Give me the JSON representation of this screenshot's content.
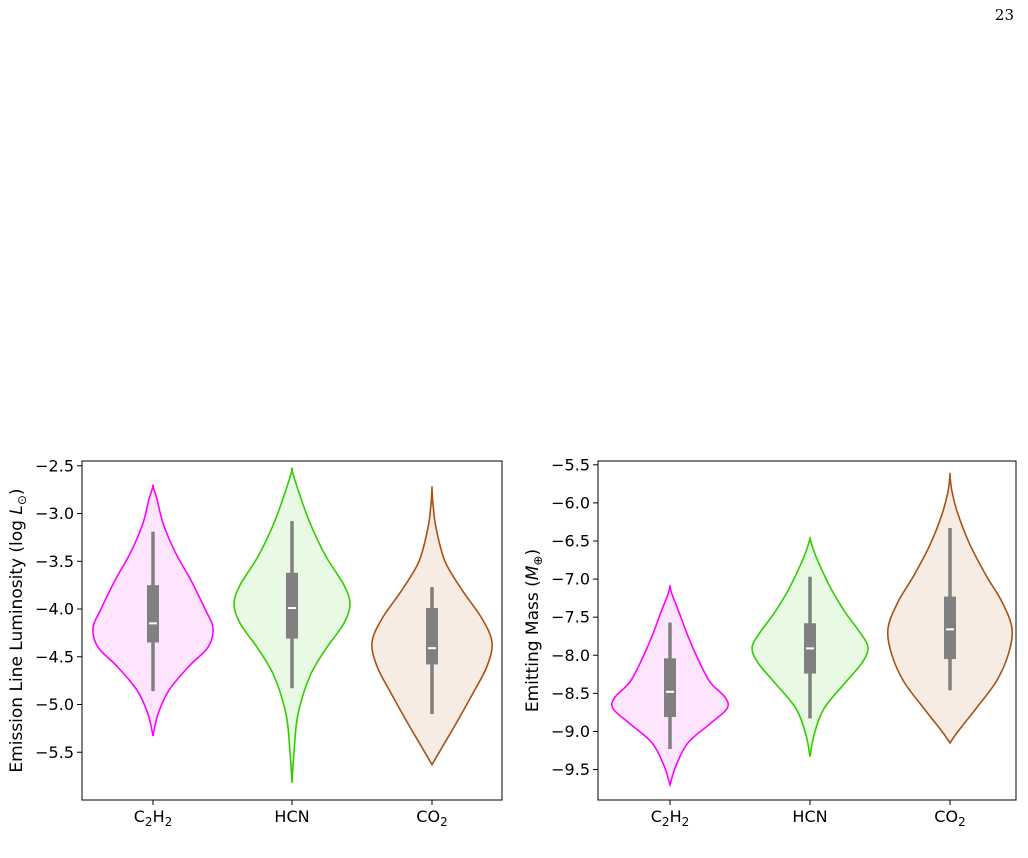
{
  "page": {
    "number": "23"
  },
  "colors": {
    "C2H2": {
      "line": "#ff00ff",
      "fill": "#fde6fd"
    },
    "HCN": {
      "line": "#33cc00",
      "fill": "#e8fae4"
    },
    "CO2": {
      "line": "#a65214",
      "fill": "#f6ece4"
    },
    "box": "#808080",
    "median": "#ffffff"
  },
  "chart_data": [
    {
      "type": "violin",
      "xlabel": "",
      "ylabel": "Emission Line Luminosity (log L",
      "ylabel_subscript": "⊙",
      "ylabel_suffix": ")",
      "ylim": [
        -6.0,
        -2.45
      ],
      "yticks": [
        -2.5,
        -3.0,
        -3.5,
        -4.0,
        -4.5,
        -5.0,
        -5.5
      ],
      "ytick_labels": [
        "−2.5",
        "−3.0",
        "−3.5",
        "−4.0",
        "−4.5",
        "−5.0",
        "−5.5"
      ],
      "categories": [
        {
          "key": "C2H2",
          "base": "C",
          "sub1": "2",
          "mid": "H",
          "sub2": "2"
        },
        {
          "key": "HCN",
          "base": "HCN",
          "sub1": "",
          "mid": "",
          "sub2": ""
        },
        {
          "key": "CO2",
          "base": "CO",
          "sub1": "2",
          "mid": "",
          "sub2": ""
        }
      ],
      "series": [
        {
          "name": "C2H2",
          "min": -5.33,
          "max": -2.72,
          "whisker_low": -4.86,
          "whisker_high": -3.19,
          "q1": -4.35,
          "q3": -3.75,
          "median": -4.15,
          "profile": [
            [
              -5.33,
              0.0
            ],
            [
              -5.1,
              0.05
            ],
            [
              -4.85,
              0.16
            ],
            [
              -4.6,
              0.36
            ],
            [
              -4.4,
              0.55
            ],
            [
              -4.2,
              0.6
            ],
            [
              -4.0,
              0.52
            ],
            [
              -3.7,
              0.38
            ],
            [
              -3.4,
              0.22
            ],
            [
              -3.1,
              0.1
            ],
            [
              -2.85,
              0.04
            ],
            [
              -2.72,
              0.0
            ]
          ]
        },
        {
          "name": "HCN",
          "min": -5.82,
          "max": -2.55,
          "whisker_low": -4.83,
          "whisker_high": -3.08,
          "q1": -4.31,
          "q3": -3.62,
          "median": -3.99,
          "profile": [
            [
              -5.82,
              0.0
            ],
            [
              -5.5,
              0.02
            ],
            [
              -5.1,
              0.06
            ],
            [
              -4.7,
              0.18
            ],
            [
              -4.4,
              0.35
            ],
            [
              -4.15,
              0.52
            ],
            [
              -3.95,
              0.58
            ],
            [
              -3.75,
              0.52
            ],
            [
              -3.45,
              0.34
            ],
            [
              -3.1,
              0.18
            ],
            [
              -2.75,
              0.06
            ],
            [
              -2.55,
              0.0
            ]
          ]
        },
        {
          "name": "CO2",
          "min": -5.63,
          "max": -2.74,
          "whisker_low": -5.1,
          "whisker_high": -3.77,
          "q1": -4.58,
          "q3": -3.99,
          "median": -4.41,
          "profile": [
            [
              -5.63,
              0.0
            ],
            [
              -5.45,
              0.1
            ],
            [
              -5.2,
              0.24
            ],
            [
              -4.9,
              0.4
            ],
            [
              -4.6,
              0.55
            ],
            [
              -4.35,
              0.6
            ],
            [
              -4.1,
              0.5
            ],
            [
              -3.8,
              0.3
            ],
            [
              -3.5,
              0.13
            ],
            [
              -3.15,
              0.04
            ],
            [
              -2.9,
              0.01
            ],
            [
              -2.74,
              0.0
            ]
          ]
        }
      ]
    },
    {
      "type": "violin",
      "xlabel": "",
      "ylabel": "Emitting Mass (M",
      "ylabel_subscript": "⊕",
      "ylabel_suffix": ")",
      "ylim": [
        -9.9,
        -5.45
      ],
      "yticks": [
        -5.5,
        -6.0,
        -6.5,
        -7.0,
        -7.5,
        -8.0,
        -8.5,
        -9.0,
        -9.5
      ],
      "ytick_labels": [
        "−5.5",
        "−6.0",
        "−6.5",
        "−7.0",
        "−7.5",
        "−8.0",
        "−8.5",
        "−9.0",
        "−9.5"
      ],
      "categories": [
        {
          "key": "C2H2",
          "base": "C",
          "sub1": "2",
          "mid": "H",
          "sub2": "2"
        },
        {
          "key": "HCN",
          "base": "HCN",
          "sub1": "",
          "mid": "",
          "sub2": ""
        },
        {
          "key": "CO2",
          "base": "CO",
          "sub1": "2",
          "mid": "",
          "sub2": ""
        }
      ],
      "series": [
        {
          "name": "C2H2",
          "min": -9.7,
          "max": -7.1,
          "whisker_low": -9.23,
          "whisker_high": -7.57,
          "q1": -8.81,
          "q3": -8.04,
          "median": -8.48,
          "profile": [
            [
              -9.7,
              0.0
            ],
            [
              -9.45,
              0.06
            ],
            [
              -9.15,
              0.18
            ],
            [
              -8.9,
              0.4
            ],
            [
              -8.7,
              0.57
            ],
            [
              -8.55,
              0.55
            ],
            [
              -8.35,
              0.4
            ],
            [
              -8.05,
              0.28
            ],
            [
              -7.75,
              0.18
            ],
            [
              -7.4,
              0.08
            ],
            [
              -7.2,
              0.02
            ],
            [
              -7.1,
              0.0
            ]
          ]
        },
        {
          "name": "HCN",
          "min": -9.33,
          "max": -6.47,
          "whisker_low": -8.83,
          "whisker_high": -6.97,
          "q1": -8.24,
          "q3": -7.58,
          "median": -7.91,
          "profile": [
            [
              -9.33,
              0.0
            ],
            [
              -9.05,
              0.04
            ],
            [
              -8.7,
              0.14
            ],
            [
              -8.35,
              0.36
            ],
            [
              -8.1,
              0.52
            ],
            [
              -7.9,
              0.58
            ],
            [
              -7.7,
              0.5
            ],
            [
              -7.45,
              0.36
            ],
            [
              -7.15,
              0.22
            ],
            [
              -6.8,
              0.09
            ],
            [
              -6.6,
              0.03
            ],
            [
              -6.47,
              0.0
            ]
          ]
        },
        {
          "name": "CO2",
          "min": -9.15,
          "max": -5.64,
          "whisker_low": -8.46,
          "whisker_high": -6.33,
          "q1": -8.05,
          "q3": -7.23,
          "median": -7.66,
          "profile": [
            [
              -9.15,
              0.0
            ],
            [
              -9.0,
              0.08
            ],
            [
              -8.7,
              0.26
            ],
            [
              -8.35,
              0.46
            ],
            [
              -8.0,
              0.58
            ],
            [
              -7.65,
              0.62
            ],
            [
              -7.3,
              0.52
            ],
            [
              -6.95,
              0.36
            ],
            [
              -6.55,
              0.2
            ],
            [
              -6.15,
              0.08
            ],
            [
              -5.85,
              0.02
            ],
            [
              -5.64,
              0.0
            ]
          ]
        }
      ]
    }
  ]
}
